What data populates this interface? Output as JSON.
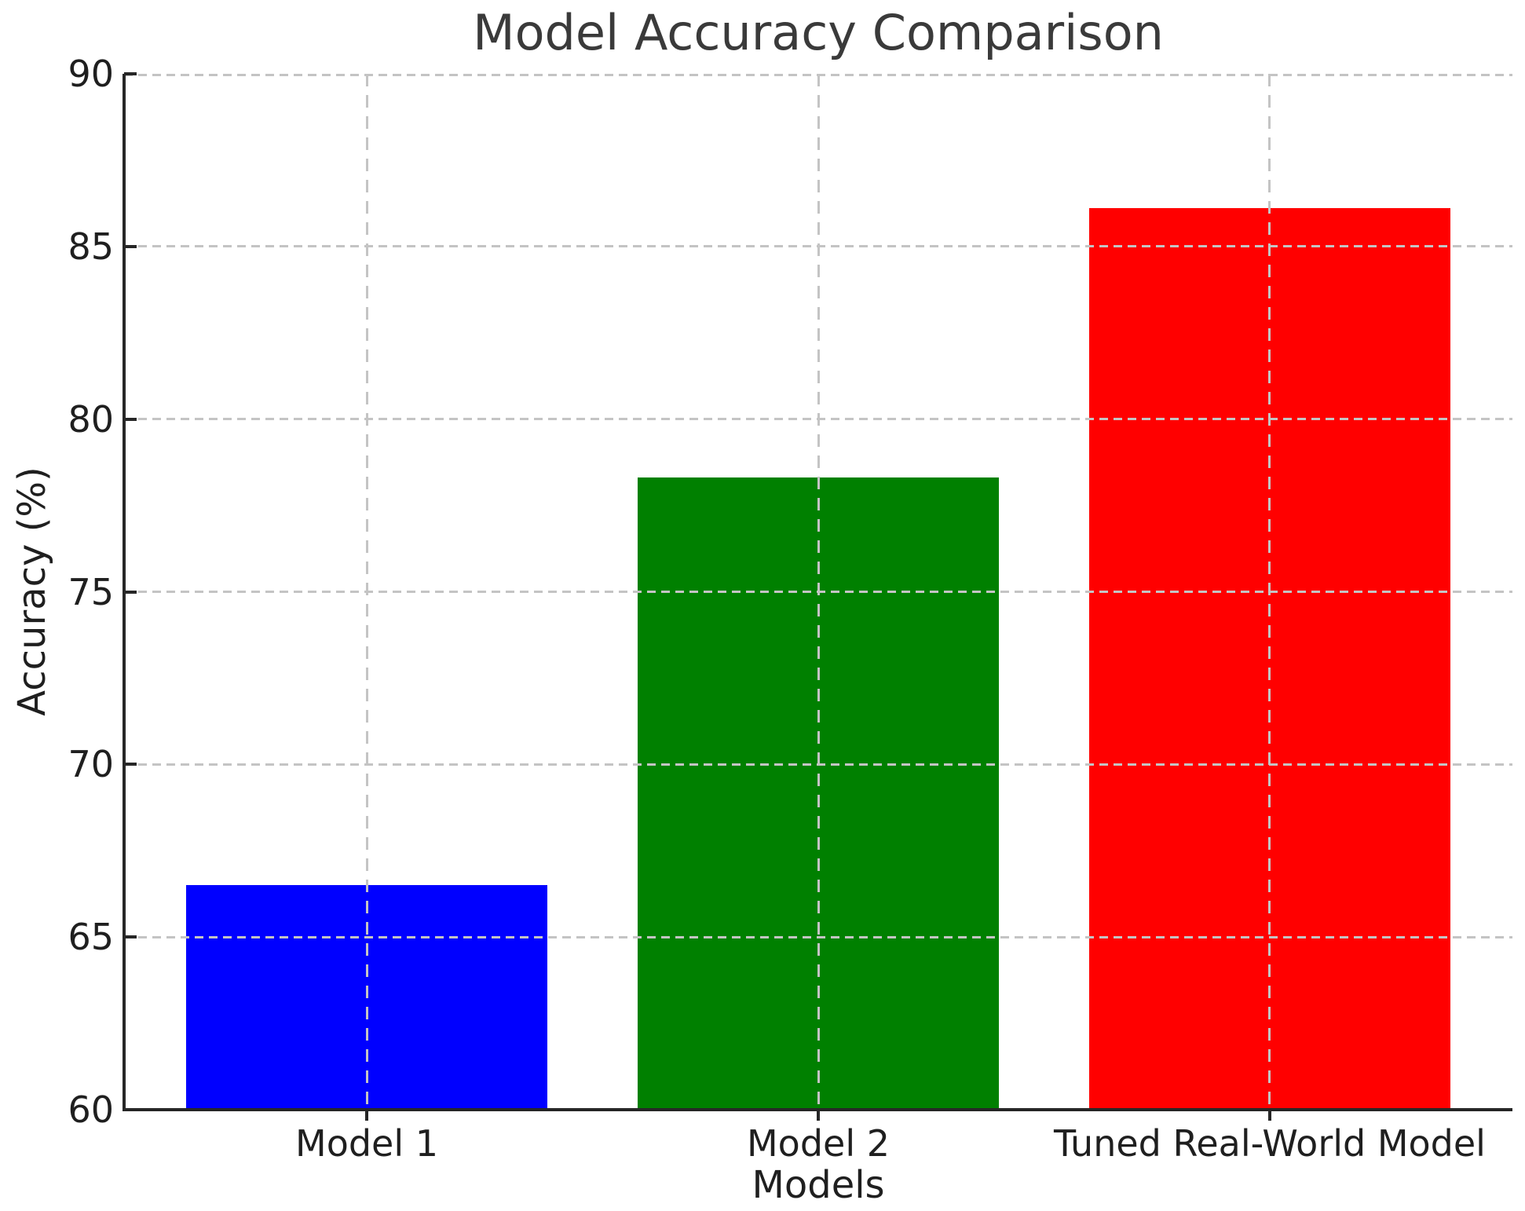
{
  "chart_data": {
    "type": "bar",
    "title": "Model Accuracy Comparison",
    "xlabel": "Models",
    "ylabel": "Accuracy (%)",
    "categories": [
      "Model 1",
      "Model 2",
      "Tuned Real-World Model"
    ],
    "values": [
      66.5,
      78.3,
      86.1
    ],
    "bar_colors": [
      "#0000ff",
      "#008000",
      "#ff0000"
    ],
    "ylim": [
      60,
      90
    ],
    "yticks": [
      60,
      65,
      70,
      75,
      80,
      85,
      90
    ],
    "ytick_labels": [
      "60",
      "65",
      "70",
      "75",
      "80",
      "85",
      "90"
    ],
    "grid": "dashed gray gridlines on both axes, drawn above bars",
    "legend_position": "none",
    "colors": {
      "grid": "#c4c4c4",
      "spine": "#262626",
      "text": "#1f1f1f",
      "title_text": "#3a3a3a",
      "background": "#ffffff"
    }
  }
}
